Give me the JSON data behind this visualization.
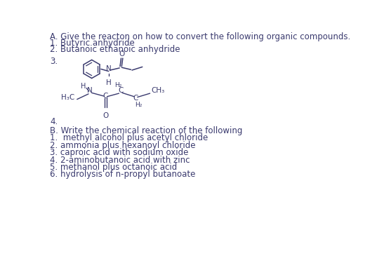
{
  "bg_color": "#ffffff",
  "text_color": "#3a3a6e",
  "line_color": "#3a3a6e",
  "title_A": "A. Give the reacton on how to convert the following organic compounds.",
  "line_A1": "1. Butyric anhydride",
  "line_A2": "2. Butanoic ethanoic anhydride",
  "label_3": "3.",
  "label_4": "4.",
  "title_B": "B. Write the chemical reaction of the following",
  "line_B1": "1.  methyl alcohol plus acetyl chloride",
  "line_B2": "2. ammonia plus hexanoyl chloride",
  "line_B3": "3. caproic acid with sodium oxide",
  "line_B4": "4. 2-aminobutanoic acid with zinc",
  "line_B5": "5. methanol plus octanoic acid",
  "line_B6": "6. hydrolysis of n-propyl butanoate",
  "font_size": 8.5,
  "font_family": "DejaVu Sans"
}
